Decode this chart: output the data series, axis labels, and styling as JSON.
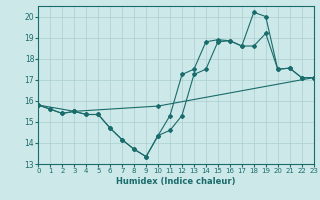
{
  "xlabel": "Humidex (Indice chaleur)",
  "xlim": [
    0,
    23
  ],
  "ylim": [
    13,
    20.5
  ],
  "yticks": [
    13,
    14,
    15,
    16,
    17,
    18,
    19,
    20
  ],
  "xticks": [
    0,
    1,
    2,
    3,
    4,
    5,
    6,
    7,
    8,
    9,
    10,
    11,
    12,
    13,
    14,
    15,
    16,
    17,
    18,
    19,
    20,
    21,
    22,
    23
  ],
  "bg_color": "#cde8e8",
  "grid_color": "#aacfcf",
  "line_color": "#1a6b6b",
  "line1_x": [
    0,
    1,
    2,
    3,
    4,
    5,
    6,
    7,
    8,
    9,
    10,
    11,
    12,
    13,
    14,
    15,
    16,
    17,
    18,
    19,
    20,
    21,
    22,
    23
  ],
  "line1_y": [
    15.8,
    15.6,
    15.4,
    15.5,
    15.35,
    15.35,
    14.7,
    14.15,
    13.7,
    13.35,
    14.35,
    15.3,
    17.25,
    17.5,
    18.8,
    18.9,
    18.85,
    18.6,
    20.2,
    20.0,
    17.5,
    17.55,
    17.1,
    17.1
  ],
  "line2_x": [
    0,
    1,
    2,
    3,
    4,
    5,
    6,
    7,
    8,
    9,
    10,
    11,
    12,
    13,
    14,
    15,
    16,
    17,
    18,
    19,
    20,
    21,
    22,
    23
  ],
  "line2_y": [
    15.8,
    15.6,
    15.4,
    15.5,
    15.35,
    15.35,
    14.7,
    14.15,
    13.7,
    13.35,
    14.35,
    14.6,
    15.3,
    17.25,
    17.5,
    18.8,
    18.85,
    18.6,
    18.6,
    19.2,
    17.5,
    17.55,
    17.1,
    17.1
  ],
  "line3_x": [
    0,
    3,
    10,
    23
  ],
  "line3_y": [
    15.8,
    15.5,
    15.75,
    17.1
  ]
}
